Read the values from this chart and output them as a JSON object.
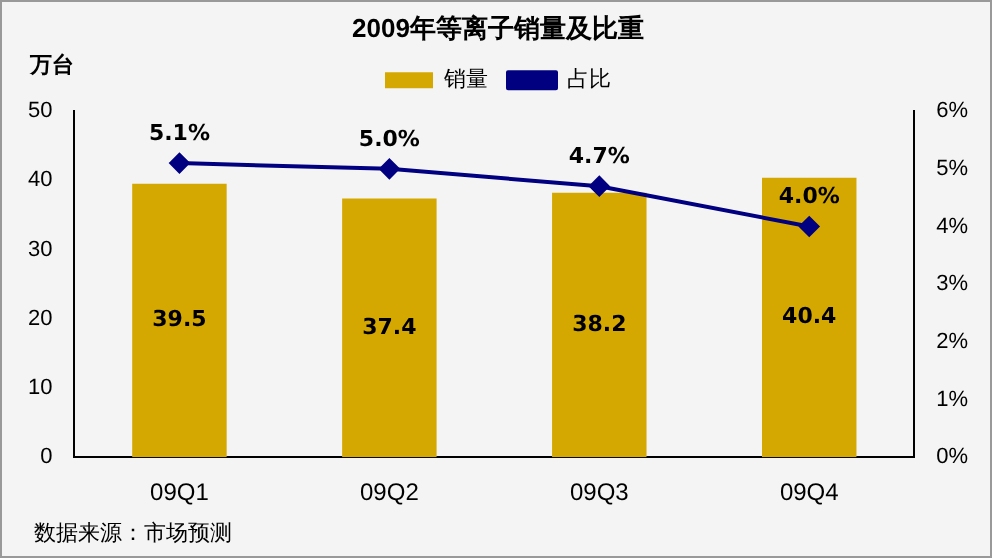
{
  "chart_data": {
    "type": "bar",
    "title": "2009年等离子销量及比重",
    "ylabel": "万台",
    "categories": [
      "09Q1",
      "09Q2",
      "09Q3",
      "09Q4"
    ],
    "series": [
      {
        "name": "销量",
        "color": "#d4a800",
        "values": [
          39.5,
          37.4,
          38.2,
          40.4
        ],
        "value_labels": [
          "39.5",
          "37.4",
          "38.2",
          "40.4"
        ]
      },
      {
        "name": "占比",
        "type": "line",
        "axis": "y2",
        "color": "#000080",
        "values": [
          5.1,
          5.0,
          4.7,
          4.0
        ],
        "value_labels": [
          "5.1%",
          "5.0%",
          "4.7%",
          "4.0%"
        ]
      }
    ],
    "ylim": [
      0,
      50
    ],
    "yticks": [
      0,
      10,
      20,
      30,
      40,
      50
    ],
    "y2lim": [
      0,
      6
    ],
    "y2ticks": [
      {
        "value": 0,
        "label": "0%"
      },
      {
        "value": 1,
        "label": "1%"
      },
      {
        "value": 2,
        "label": "2%"
      },
      {
        "value": 3,
        "label": "3%"
      },
      {
        "value": 4,
        "label": "4%"
      },
      {
        "value": 5,
        "label": "5%"
      },
      {
        "value": 6,
        "label": "6%"
      }
    ],
    "legend": "top",
    "grid": false,
    "marker": "diamond",
    "line_style": "solid",
    "annotations": [
      "数据来源：市场预测"
    ]
  }
}
